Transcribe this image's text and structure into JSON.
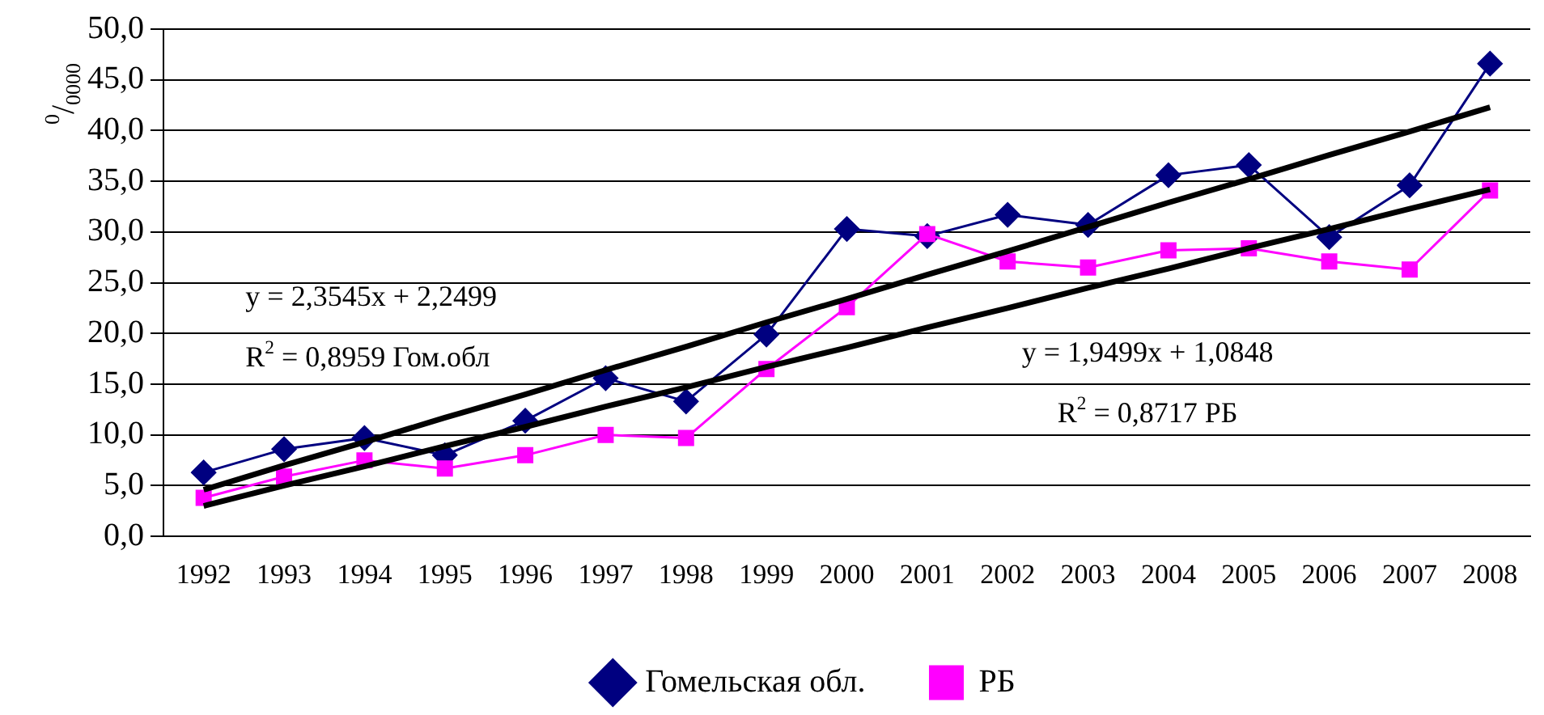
{
  "chart_data": {
    "type": "line",
    "ylabel": "$^{0}$/$_{0000}$",
    "categories": [
      "1992",
      "1993",
      "1994",
      "1995",
      "1996",
      "1997",
      "1998",
      "1999",
      "2000",
      "2001",
      "2002",
      "2003",
      "2004",
      "2005",
      "2006",
      "2007",
      "2008"
    ],
    "series": [
      {
        "name": "Гомельская обл.",
        "color": "#000080",
        "marker": "diamond",
        "values": [
          6.3,
          8.6,
          9.7,
          8.0,
          11.4,
          15.6,
          13.3,
          19.9,
          30.3,
          29.6,
          31.7,
          30.7,
          35.6,
          36.6,
          29.5,
          34.6,
          46.6
        ]
      },
      {
        "name": "РБ",
        "color": "#ff00ff",
        "marker": "square",
        "values": [
          3.8,
          5.9,
          7.5,
          6.7,
          8.0,
          10.0,
          9.7,
          16.5,
          22.6,
          29.8,
          27.1,
          26.5,
          28.2,
          28.4,
          27.1,
          26.3,
          34.1
        ]
      },
      {
        "type": "line",
        "color": "#000000",
        "marker": "none",
        "values": [
          4.6,
          7.0,
          9.3,
          11.7,
          14.0,
          16.4,
          18.7,
          21.1,
          23.4,
          25.8,
          28.1,
          30.5,
          32.9,
          35.2,
          37.6,
          39.9,
          42.3
        ]
      },
      {
        "type": "line",
        "color": "#000000",
        "marker": "none",
        "values": [
          3.0,
          5.0,
          6.9,
          8.9,
          10.8,
          12.8,
          14.7,
          16.7,
          18.6,
          20.6,
          22.5,
          24.5,
          26.4,
          28.4,
          30.3,
          32.3,
          34.2
        ]
      }
    ],
    "ylim": [
      0,
      50
    ],
    "yticks": [
      {
        "value": 0,
        "label": "0,0"
      },
      {
        "value": 5,
        "label": "5,0"
      },
      {
        "value": 10,
        "label": "10,0"
      },
      {
        "value": 15,
        "label": "15,0"
      },
      {
        "value": 20,
        "label": "20,0"
      },
      {
        "value": 25,
        "label": "25,0"
      },
      {
        "value": 30,
        "label": "30,0"
      },
      {
        "value": 35,
        "label": "35,0"
      },
      {
        "value": 40,
        "label": "40,0"
      },
      {
        "value": 45,
        "label": "45,0"
      },
      {
        "value": 50,
        "label": "50,0"
      }
    ],
    "grid": "y",
    "legend": "bottom",
    "line_style": "solid",
    "annotations": [
      "y = 2,3545x + 2,2499",
      "R$^{2}$ = 0,8959 Гом.обл",
      "y = 1,9499x + 1,0848",
      "R$^{2}$ = 0,8717 РБ"
    ]
  }
}
